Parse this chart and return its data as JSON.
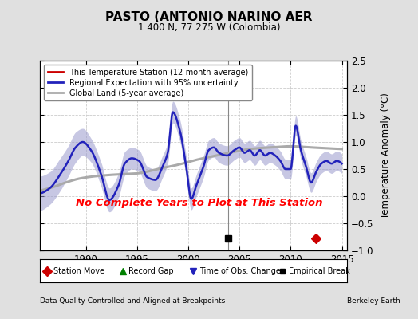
{
  "title": "PASTO (ANTONIO NARINO AER",
  "subtitle": "1.400 N, 77.275 W (Colombia)",
  "ylabel": "Temperature Anomaly (°C)",
  "footer_left": "Data Quality Controlled and Aligned at Breakpoints",
  "footer_right": "Berkeley Earth",
  "xlim": [
    1985.5,
    2015.5
  ],
  "ylim": [
    -1.0,
    2.5
  ],
  "yticks": [
    -1.0,
    -0.5,
    0.0,
    0.5,
    1.0,
    1.5,
    2.0,
    2.5
  ],
  "xticks": [
    1990,
    1995,
    2000,
    2005,
    2010,
    2015
  ],
  "bg_color": "#e0e0e0",
  "plot_bg_color": "#ffffff",
  "regional_color": "#2222bb",
  "regional_fill_color": "#9999cc",
  "global_color": "#aaaaaa",
  "station_color": "#cc0000",
  "no_data_text": "No Complete Years to Plot at This Station",
  "no_data_color": "#ff0000",
  "vline_x": 2003.9,
  "empirical_break_x": 2003.9,
  "station_move_x": 2012.5,
  "legend_station": "This Temperature Station (12-month average)",
  "legend_regional": "Regional Expectation with 95% uncertainty",
  "legend_global": "Global Land (5-year average)",
  "legend_bot_1": "Station Move",
  "legend_bot_2": "Record Gap",
  "legend_bot_3": "Time of Obs. Change",
  "legend_bot_4": "Empirical Break"
}
